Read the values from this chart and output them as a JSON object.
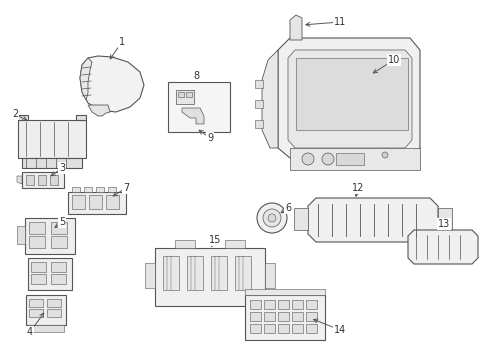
{
  "background_color": "#ffffff",
  "fig_width": 4.9,
  "fig_height": 3.6,
  "dpi": 100,
  "line_color": "#555555",
  "label_fontsize": 7,
  "parts": [
    {
      "id": "1"
    },
    {
      "id": "2"
    },
    {
      "id": "3"
    },
    {
      "id": "4"
    },
    {
      "id": "5"
    },
    {
      "id": "6"
    },
    {
      "id": "7"
    },
    {
      "id": "8"
    },
    {
      "id": "9"
    },
    {
      "id": "10"
    },
    {
      "id": "11"
    },
    {
      "id": "12"
    },
    {
      "id": "13"
    },
    {
      "id": "14"
    },
    {
      "id": "15"
    }
  ]
}
